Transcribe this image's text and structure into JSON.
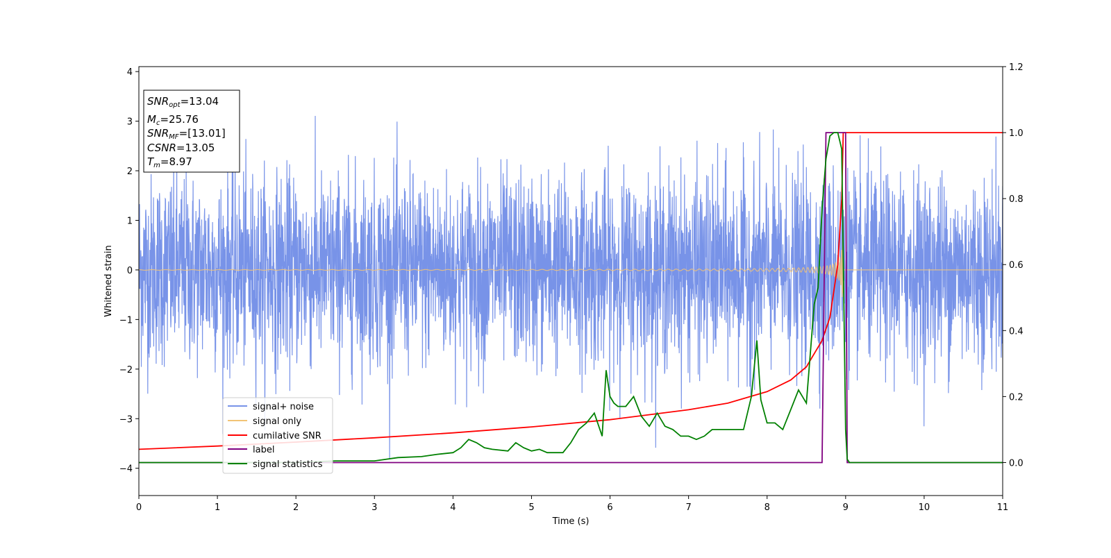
{
  "chart_data": {
    "type": "line",
    "xlabel": "Time (s)",
    "ylabel_left": "Whitened strain",
    "ylabel_right": "",
    "xlim": [
      0,
      11
    ],
    "ylim_left": [
      -4.55,
      4.1
    ],
    "ylim_right": [
      -0.1,
      1.2
    ],
    "x_ticks": [
      "0",
      "1",
      "2",
      "3",
      "4",
      "5",
      "6",
      "7",
      "8",
      "9",
      "10",
      "11"
    ],
    "y_left_ticks": [
      "4",
      "3",
      "2",
      "1",
      "0",
      "−1",
      "−2",
      "−3",
      "−4"
    ],
    "y_left_tick_values": [
      4,
      3,
      2,
      1,
      0,
      -1,
      -2,
      -3,
      -4
    ],
    "y_right_ticks": [
      "1.2",
      "1.0",
      "0.8",
      "0.6",
      "0.4",
      "0.2",
      "0.0"
    ],
    "y_right_tick_values": [
      1.2,
      1.0,
      0.8,
      0.6,
      0.4,
      0.2,
      0.0
    ],
    "grid": false,
    "legend_position": "lower-left",
    "info_box": {
      "snr_opt": {
        "main": "SNR",
        "sub": "opt",
        "value": "=13.04"
      },
      "mc": {
        "main": "M",
        "sub": "c",
        "value": "=25.76"
      },
      "snr_mf": {
        "main": "SNR",
        "sub": "MF",
        "value": "=[13.01]"
      },
      "csnr": {
        "main": "CSNR",
        "value": "=13.05"
      },
      "tm": {
        "main": "T",
        "sub": "m",
        "value": "=8.97"
      }
    },
    "series": [
      {
        "name": "signal+ noise",
        "axis": "left",
        "color": "#7893e8",
        "description": "whitened strain noise, amplitude about ±2 with spikes to ±3.7 across 0–11 s"
      },
      {
        "name": "signal only",
        "axis": "left",
        "color": "#f2c375",
        "description": "chirp waveform, amplitude growing until merger at ~8.97 s"
      },
      {
        "name": "cumilative SNR",
        "axis": "right",
        "color": "#ff0000",
        "x": [
          0,
          1,
          2,
          3,
          4,
          5,
          6,
          7,
          7.5,
          8,
          8.3,
          8.5,
          8.7,
          8.8,
          8.9,
          8.95,
          8.97,
          9.0,
          11
        ],
        "y": [
          0.04,
          0.05,
          0.062,
          0.075,
          0.09,
          0.108,
          0.13,
          0.16,
          0.18,
          0.215,
          0.25,
          0.29,
          0.37,
          0.44,
          0.6,
          0.8,
          1.0,
          1.0,
          1.0
        ]
      },
      {
        "name": "label",
        "axis": "right",
        "color": "#800080",
        "x": [
          0,
          8.7,
          8.75,
          9.0,
          9.02,
          11
        ],
        "y": [
          0.0,
          0.0,
          1.0,
          1.0,
          0.0,
          0.0
        ]
      },
      {
        "name": "signal statistics",
        "axis": "right",
        "color": "#008000",
        "x": [
          0,
          1,
          2,
          2.5,
          3,
          3.3,
          3.6,
          3.8,
          4.0,
          4.1,
          4.2,
          4.3,
          4.4,
          4.5,
          4.7,
          4.8,
          4.9,
          5.0,
          5.1,
          5.2,
          5.4,
          5.5,
          5.6,
          5.7,
          5.8,
          5.9,
          5.95,
          6.0,
          6.05,
          6.1,
          6.2,
          6.3,
          6.4,
          6.5,
          6.6,
          6.7,
          6.8,
          6.9,
          7.0,
          7.1,
          7.2,
          7.3,
          7.4,
          7.5,
          7.6,
          7.7,
          7.8,
          7.87,
          7.92,
          8.0,
          8.1,
          8.2,
          8.3,
          8.4,
          8.5,
          8.6,
          8.65,
          8.7,
          8.75,
          8.8,
          8.85,
          8.9,
          8.95,
          9.0,
          9.02,
          9.05,
          11
        ],
        "y": [
          0.0,
          0.0,
          0.0,
          0.005,
          0.005,
          0.015,
          0.018,
          0.025,
          0.03,
          0.045,
          0.07,
          0.06,
          0.045,
          0.04,
          0.035,
          0.06,
          0.045,
          0.035,
          0.04,
          0.03,
          0.03,
          0.06,
          0.1,
          0.12,
          0.15,
          0.08,
          0.28,
          0.2,
          0.18,
          0.17,
          0.17,
          0.2,
          0.14,
          0.11,
          0.15,
          0.11,
          0.1,
          0.08,
          0.08,
          0.07,
          0.08,
          0.1,
          0.1,
          0.1,
          0.1,
          0.1,
          0.2,
          0.37,
          0.19,
          0.12,
          0.12,
          0.1,
          0.16,
          0.22,
          0.18,
          0.48,
          0.53,
          0.77,
          0.92,
          0.99,
          1.0,
          1.0,
          0.95,
          0.1,
          0.01,
          0.0,
          0.0
        ]
      }
    ]
  }
}
